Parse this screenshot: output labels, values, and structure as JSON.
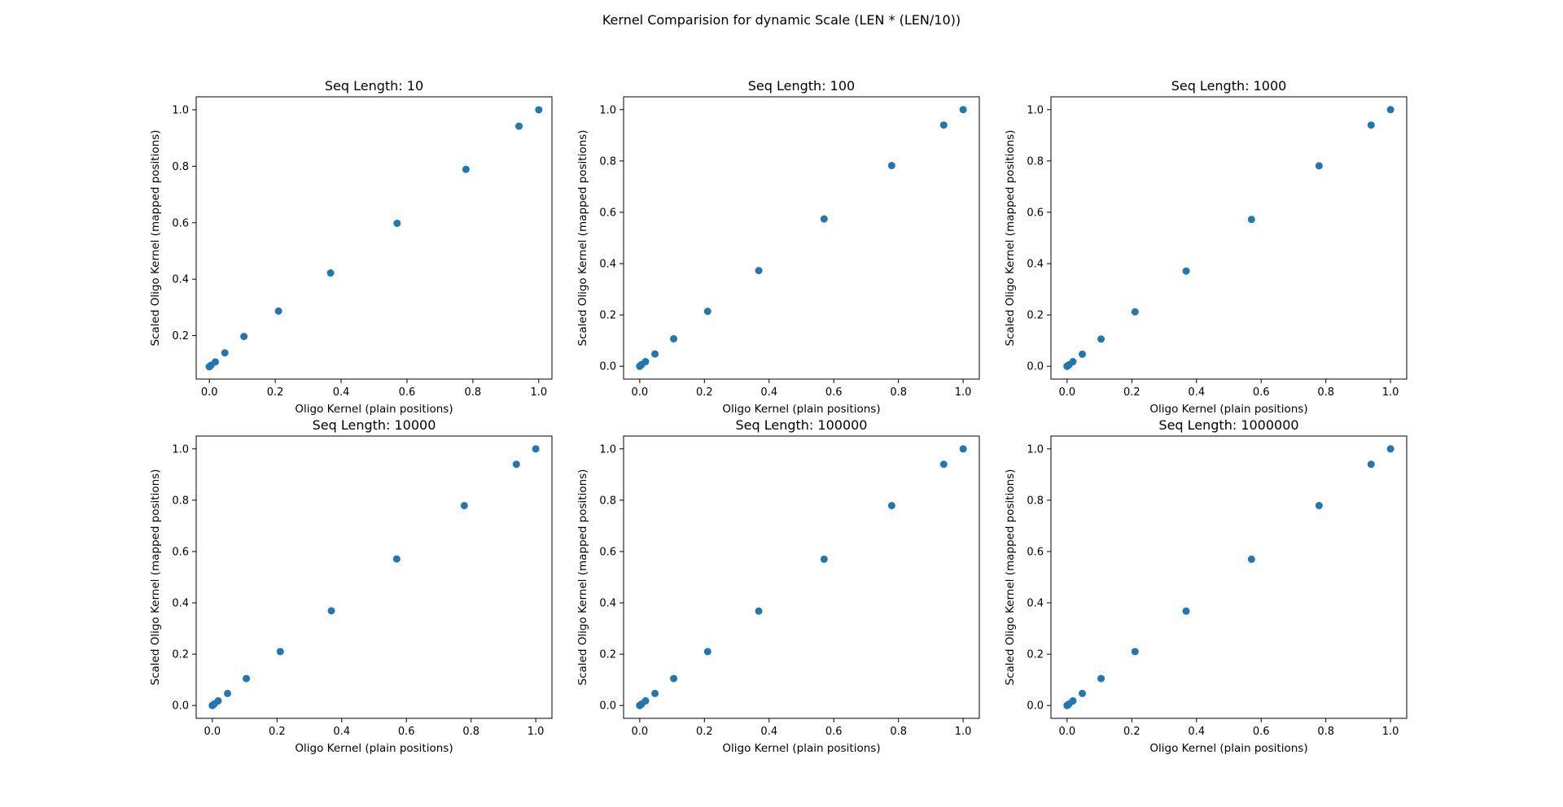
{
  "figure": {
    "title": "Kernel Comparision for dynamic Scale (LEN * (LEN/10))"
  },
  "colors": {
    "marker": "#1f77b4",
    "axes": "#000000",
    "background": "#ffffff"
  },
  "chart_data": [
    {
      "type": "scatter",
      "title": "Seq Length: 10",
      "xlabel": "Oligo Kernel (plain positions)",
      "ylabel": "Scaled Oligo Kernel (mapped positions)",
      "xlim": [
        -0.04,
        1.04
      ],
      "ylim": [
        0.046,
        1.046
      ],
      "xticks": [
        0.0,
        0.2,
        0.4,
        0.6,
        0.8,
        1.0
      ],
      "xticklabels": [
        "0.0",
        "0.2",
        "0.4",
        "0.6",
        "0.8",
        "1.0"
      ],
      "yticks": [
        0.2,
        0.4,
        0.6,
        0.8,
        1.0
      ],
      "yticklabels": [
        "0.2",
        "0.4",
        "0.6",
        "0.8",
        "1.0"
      ],
      "grid": false,
      "x": [
        0.0,
        0.0,
        0.005,
        0.018,
        0.047,
        0.105,
        0.21,
        0.368,
        0.57,
        0.779,
        0.94,
        1.0
      ],
      "y": [
        0.09,
        0.09,
        0.095,
        0.107,
        0.139,
        0.197,
        0.287,
        0.422,
        0.598,
        0.789,
        0.942,
        1.0
      ]
    },
    {
      "type": "scatter",
      "title": "Seq Length: 100",
      "xlabel": "Oligo Kernel (plain positions)",
      "ylabel": "Scaled Oligo Kernel (mapped positions)",
      "xlim": [
        -0.05,
        1.05
      ],
      "ylim": [
        -0.05,
        1.05
      ],
      "xticks": [
        0.0,
        0.2,
        0.4,
        0.6,
        0.8,
        1.0
      ],
      "xticklabels": [
        "0.0",
        "0.2",
        "0.4",
        "0.6",
        "0.8",
        "1.0"
      ],
      "yticks": [
        0.0,
        0.2,
        0.4,
        0.6,
        0.8,
        1.0
      ],
      "yticklabels": [
        "0.0",
        "0.2",
        "0.4",
        "0.6",
        "0.8",
        "1.0"
      ],
      "grid": false,
      "x": [
        0.0,
        0.0,
        0.002,
        0.006,
        0.018,
        0.047,
        0.105,
        0.21,
        0.368,
        0.57,
        0.779,
        0.94,
        1.0
      ],
      "y": [
        0.0,
        0.0,
        0.003,
        0.007,
        0.018,
        0.048,
        0.107,
        0.214,
        0.373,
        0.574,
        0.782,
        0.94,
        1.0
      ]
    },
    {
      "type": "scatter",
      "title": "Seq Length: 1000",
      "xlabel": "Oligo Kernel (plain positions)",
      "ylabel": "Scaled Oligo Kernel (mapped positions)",
      "xlim": [
        -0.05,
        1.05
      ],
      "ylim": [
        -0.05,
        1.05
      ],
      "xticks": [
        0.0,
        0.2,
        0.4,
        0.6,
        0.8,
        1.0
      ],
      "xticklabels": [
        "0.0",
        "0.2",
        "0.4",
        "0.6",
        "0.8",
        "1.0"
      ],
      "yticks": [
        0.0,
        0.2,
        0.4,
        0.6,
        0.8,
        1.0
      ],
      "yticklabels": [
        "0.0",
        "0.2",
        "0.4",
        "0.6",
        "0.8",
        "1.0"
      ],
      "grid": false,
      "x": [
        0.0,
        0.0,
        0.002,
        0.006,
        0.018,
        0.047,
        0.105,
        0.21,
        0.368,
        0.57,
        0.779,
        0.94,
        1.0
      ],
      "y": [
        0.0,
        0.0,
        0.002,
        0.006,
        0.018,
        0.047,
        0.106,
        0.212,
        0.371,
        0.572,
        0.781,
        0.94,
        1.0
      ]
    },
    {
      "type": "scatter",
      "title": "Seq Length: 10000",
      "xlabel": "Oligo Kernel (plain positions)",
      "ylabel": "Scaled Oligo Kernel (mapped positions)",
      "xlim": [
        -0.05,
        1.05
      ],
      "ylim": [
        -0.05,
        1.05
      ],
      "xticks": [
        0.0,
        0.2,
        0.4,
        0.6,
        0.8,
        1.0
      ],
      "xticklabels": [
        "0.0",
        "0.2",
        "0.4",
        "0.6",
        "0.8",
        "1.0"
      ],
      "yticks": [
        0.0,
        0.2,
        0.4,
        0.6,
        0.8,
        1.0
      ],
      "yticklabels": [
        "0.0",
        "0.2",
        "0.4",
        "0.6",
        "0.8",
        "1.0"
      ],
      "grid": false,
      "x": [
        0.0,
        0.0,
        0.002,
        0.006,
        0.018,
        0.047,
        0.105,
        0.21,
        0.368,
        0.57,
        0.779,
        0.94,
        1.0
      ],
      "y": [
        0.0,
        0.0,
        0.002,
        0.006,
        0.018,
        0.047,
        0.105,
        0.21,
        0.369,
        0.571,
        0.779,
        0.94,
        1.0
      ]
    },
    {
      "type": "scatter",
      "title": "Seq Length: 100000",
      "xlabel": "Oligo Kernel (plain positions)",
      "ylabel": "Scaled Oligo Kernel (mapped positions)",
      "xlim": [
        -0.05,
        1.05
      ],
      "ylim": [
        -0.05,
        1.05
      ],
      "xticks": [
        0.0,
        0.2,
        0.4,
        0.6,
        0.8,
        1.0
      ],
      "xticklabels": [
        "0.0",
        "0.2",
        "0.4",
        "0.6",
        "0.8",
        "1.0"
      ],
      "yticks": [
        0.0,
        0.2,
        0.4,
        0.6,
        0.8,
        1.0
      ],
      "yticklabels": [
        "0.0",
        "0.2",
        "0.4",
        "0.6",
        "0.8",
        "1.0"
      ],
      "grid": false,
      "x": [
        0.0,
        0.0,
        0.002,
        0.006,
        0.018,
        0.047,
        0.105,
        0.21,
        0.368,
        0.57,
        0.779,
        0.94,
        1.0
      ],
      "y": [
        0.0,
        0.0,
        0.002,
        0.006,
        0.018,
        0.047,
        0.105,
        0.21,
        0.368,
        0.57,
        0.779,
        0.94,
        1.0
      ]
    },
    {
      "type": "scatter",
      "title": "Seq Length: 1000000",
      "xlabel": "Oligo Kernel (plain positions)",
      "ylabel": "Scaled Oligo Kernel (mapped positions)",
      "xlim": [
        -0.05,
        1.05
      ],
      "ylim": [
        -0.05,
        1.05
      ],
      "xticks": [
        0.0,
        0.2,
        0.4,
        0.6,
        0.8,
        1.0
      ],
      "xticklabels": [
        "0.0",
        "0.2",
        "0.4",
        "0.6",
        "0.8",
        "1.0"
      ],
      "yticks": [
        0.0,
        0.2,
        0.4,
        0.6,
        0.8,
        1.0
      ],
      "yticklabels": [
        "0.0",
        "0.2",
        "0.4",
        "0.6",
        "0.8",
        "1.0"
      ],
      "grid": false,
      "x": [
        0.0,
        0.0,
        0.002,
        0.006,
        0.018,
        0.047,
        0.105,
        0.21,
        0.368,
        0.57,
        0.779,
        0.94,
        1.0
      ],
      "y": [
        0.0,
        0.0,
        0.002,
        0.006,
        0.018,
        0.047,
        0.105,
        0.21,
        0.368,
        0.57,
        0.779,
        0.94,
        1.0
      ]
    }
  ]
}
